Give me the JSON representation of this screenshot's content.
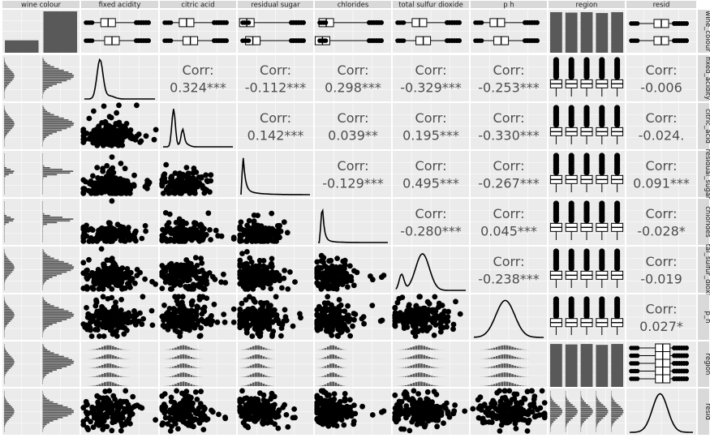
{
  "chart_data": {
    "type": "pairs-matrix",
    "variables": [
      {
        "label": "wine_colour",
        "kind": "categorical"
      },
      {
        "label": "fixed_acidity",
        "kind": "continuous"
      },
      {
        "label": "citric_acid",
        "kind": "continuous"
      },
      {
        "label": "residual_sugar",
        "kind": "continuous"
      },
      {
        "label": "chlorides",
        "kind": "continuous"
      },
      {
        "label": "total_sulfur_dioxide",
        "kind": "continuous"
      },
      {
        "label": "p_h",
        "kind": "continuous"
      },
      {
        "label": "region",
        "kind": "categorical"
      },
      {
        "label": "resid",
        "kind": "continuous"
      }
    ],
    "top_strip_labels": [
      "wine colour",
      "fixed acidity",
      "citric acid",
      "residual sugar",
      "chlorides",
      "total sulfur dioxide",
      "p h",
      "region",
      "resid"
    ],
    "right_strip_labels": [
      "wine_colour",
      "fixed_acidity",
      "citric_acid",
      "residual_sugar",
      "chlorides",
      "tal_sulfur_dioxi",
      "p_h",
      "region",
      "resid"
    ],
    "corr_label": "Corr:",
    "correlations": [
      {
        "row": 1,
        "col": 2,
        "text": "0.324***"
      },
      {
        "row": 1,
        "col": 3,
        "text": "-0.112***"
      },
      {
        "row": 1,
        "col": 4,
        "text": "0.298***"
      },
      {
        "row": 1,
        "col": 5,
        "text": "-0.329***"
      },
      {
        "row": 1,
        "col": 6,
        "text": "-0.253***"
      },
      {
        "row": 1,
        "col": 8,
        "text": "-0.006"
      },
      {
        "row": 2,
        "col": 3,
        "text": "0.142***"
      },
      {
        "row": 2,
        "col": 4,
        "text": "0.039**"
      },
      {
        "row": 2,
        "col": 5,
        "text": "0.195***"
      },
      {
        "row": 2,
        "col": 6,
        "text": "-0.330***"
      },
      {
        "row": 2,
        "col": 8,
        "text": "-0.024."
      },
      {
        "row": 3,
        "col": 4,
        "text": "-0.129***"
      },
      {
        "row": 3,
        "col": 5,
        "text": "0.495***"
      },
      {
        "row": 3,
        "col": 6,
        "text": "-0.267***"
      },
      {
        "row": 3,
        "col": 8,
        "text": "0.091***"
      },
      {
        "row": 4,
        "col": 5,
        "text": "-0.280***"
      },
      {
        "row": 4,
        "col": 6,
        "text": "0.045***"
      },
      {
        "row": 4,
        "col": 8,
        "text": "-0.028*"
      },
      {
        "row": 5,
        "col": 6,
        "text": "-0.238***"
      },
      {
        "row": 5,
        "col": 8,
        "text": "-0.019"
      },
      {
        "row": 6,
        "col": 8,
        "text": "0.027*"
      }
    ],
    "wine_colour_bar_heights": [
      0.3,
      1.0
    ],
    "region_bar_heights": [
      0.98,
      0.97,
      0.98,
      0.96,
      0.98
    ],
    "colors": {
      "panel": "#ebebeb",
      "strip": "#d9d9d9",
      "grid": "#ffffff",
      "ink": "#000000",
      "bar": "#595959",
      "text": "#4d4d4d"
    }
  }
}
